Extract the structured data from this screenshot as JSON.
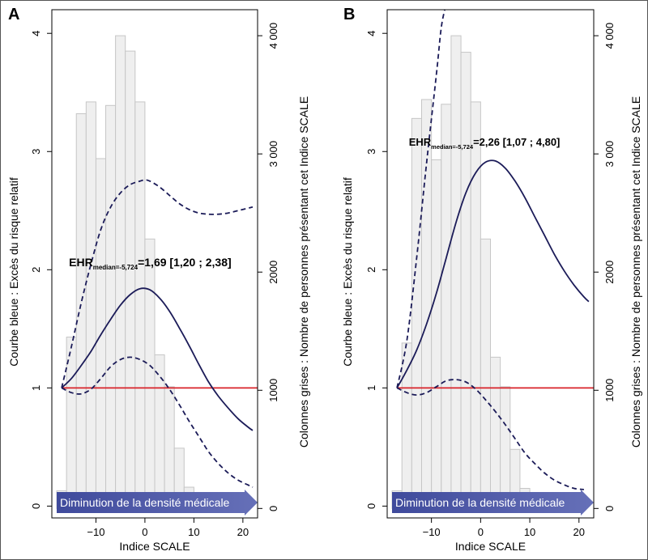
{
  "chart_data": [
    {
      "type": "bar+line",
      "panel_label": "A",
      "xlabel": "Indice SCALE",
      "ylabel_left": "Courbe bleue : Excès du risque relatif",
      "ylabel_right": "Colonnes grises : Nombre de personnes présentant cet Indice SCALE",
      "x_ticks": [
        "−10",
        "0",
        "10",
        "20"
      ],
      "x_tick_values": [
        -10,
        0,
        10,
        20
      ],
      "y_left_ticks": [
        "0",
        "1",
        "2",
        "3",
        "4"
      ],
      "y_left_tick_values": [
        0,
        1,
        2,
        3,
        4
      ],
      "y_right_ticks": [
        "0",
        "1000",
        "2000",
        "3 000",
        "4 000"
      ],
      "y_right_tick_values": [
        0,
        1000,
        2000,
        3000,
        4000
      ],
      "xlim": [
        -19,
        23
      ],
      "ylim_left": [
        -0.1,
        4.2
      ],
      "ylim_right": [
        -80,
        4220
      ],
      "histogram": {
        "bin_width": 2,
        "bin_starts": [
          -18,
          -16,
          -14,
          -12,
          -10,
          -8,
          -6,
          -4,
          -2,
          0,
          2,
          4,
          6,
          8,
          10,
          12,
          14,
          16,
          18,
          20
        ],
        "counts": [
          150,
          1450,
          3340,
          3440,
          2960,
          3410,
          4000,
          3870,
          3440,
          2280,
          1300,
          1030,
          510,
          180,
          70,
          70,
          40,
          50,
          20,
          0
        ]
      },
      "reference_line_y": 1,
      "ehr_curve": {
        "x": [
          -17,
          -15,
          -13,
          -11,
          -9,
          -7,
          -5,
          -3,
          -1,
          1,
          3,
          5,
          7,
          9,
          11,
          13,
          15,
          17,
          19,
          21,
          22
        ],
        "y": [
          1.0,
          1.08,
          1.19,
          1.31,
          1.45,
          1.58,
          1.7,
          1.79,
          1.84,
          1.83,
          1.76,
          1.65,
          1.51,
          1.36,
          1.2,
          1.05,
          0.93,
          0.83,
          0.74,
          0.67,
          0.64
        ]
      },
      "ci_upper": {
        "x": [
          -17,
          -15,
          -13,
          -11,
          -9,
          -7,
          -5,
          -3,
          -1,
          0,
          1,
          3,
          5,
          7,
          9,
          11,
          13,
          15,
          17,
          19,
          21,
          22
        ],
        "y": [
          1.0,
          1.35,
          1.72,
          2.05,
          2.34,
          2.53,
          2.65,
          2.72,
          2.75,
          2.76,
          2.75,
          2.7,
          2.63,
          2.56,
          2.51,
          2.48,
          2.47,
          2.47,
          2.48,
          2.5,
          2.52,
          2.53
        ]
      },
      "ci_lower": {
        "x": [
          -17,
          -15,
          -13,
          -11,
          -9,
          -7,
          -5,
          -3,
          -1,
          1,
          3,
          5,
          7,
          9,
          11,
          13,
          15,
          17,
          19,
          21,
          22
        ],
        "y": [
          1.0,
          0.96,
          0.95,
          0.99,
          1.08,
          1.18,
          1.24,
          1.26,
          1.24,
          1.19,
          1.1,
          0.99,
          0.86,
          0.72,
          0.59,
          0.46,
          0.36,
          0.28,
          0.22,
          0.18,
          0.16
        ]
      },
      "annotation": {
        "main": "EHR",
        "subscript": "median=-5,724",
        "value": "=1,69 [1,20 ; 2,38]",
        "x": -15.5,
        "y": 2.03
      },
      "banner": {
        "text": "Diminution de la densité médicale"
      }
    },
    {
      "type": "bar+line",
      "panel_label": "B",
      "xlabel": "Indice SCALE",
      "ylabel_left": "Courbe bleue : Excès du risque relatif",
      "ylabel_right": "Colonnes grises : Nombre de personnes présentant cet Indice SCALE",
      "x_ticks": [
        "−10",
        "0",
        "10",
        "20"
      ],
      "x_tick_values": [
        -10,
        0,
        10,
        20
      ],
      "y_left_ticks": [
        "0",
        "1",
        "2",
        "3",
        "4"
      ],
      "y_left_tick_values": [
        0,
        1,
        2,
        3,
        4
      ],
      "y_right_ticks": [
        "0",
        "1000",
        "2000",
        "3 000",
        "4 000"
      ],
      "y_right_tick_values": [
        0,
        1000,
        2000,
        3000,
        4000
      ],
      "xlim": [
        -19,
        23
      ],
      "ylim_left": [
        -0.1,
        4.2
      ],
      "ylim_right": [
        -80,
        4220
      ],
      "histogram": {
        "bin_width": 2,
        "bin_starts": [
          -18,
          -16,
          -14,
          -12,
          -10,
          -8,
          -6,
          -4,
          -2,
          0,
          2,
          4,
          6,
          8,
          10,
          12,
          14,
          16,
          18,
          20
        ],
        "counts": [
          150,
          1400,
          3300,
          3460,
          2950,
          3420,
          4000,
          3860,
          3440,
          2280,
          1280,
          1030,
          500,
          170,
          70,
          70,
          40,
          50,
          20,
          0
        ]
      },
      "reference_line_y": 1,
      "ehr_curve": {
        "x": [
          -17,
          -15,
          -13,
          -11,
          -9,
          -7,
          -5,
          -3,
          -1,
          1,
          3,
          5,
          7,
          9,
          11,
          13,
          15,
          17,
          19,
          21,
          22
        ],
        "y": [
          1.0,
          1.15,
          1.32,
          1.54,
          1.8,
          2.1,
          2.4,
          2.65,
          2.82,
          2.91,
          2.92,
          2.86,
          2.75,
          2.61,
          2.45,
          2.29,
          2.13,
          1.99,
          1.87,
          1.77,
          1.73
        ]
      },
      "ci_upper": {
        "x": [
          -17,
          -15,
          -13,
          -11,
          -9,
          -8,
          -7
        ],
        "y": [
          1.0,
          1.4,
          2.1,
          2.9,
          3.65,
          4.05,
          4.25
        ]
      },
      "ci_lower": {
        "x": [
          -17,
          -15,
          -13,
          -11,
          -9,
          -7,
          -5,
          -3,
          -1,
          1,
          3,
          5,
          7,
          9,
          11,
          13,
          15,
          17,
          19,
          21
        ],
        "y": [
          1.0,
          0.96,
          0.94,
          0.96,
          1.01,
          1.06,
          1.07,
          1.05,
          0.99,
          0.9,
          0.8,
          0.69,
          0.57,
          0.45,
          0.36,
          0.28,
          0.22,
          0.18,
          0.15,
          0.14
        ]
      },
      "annotation": {
        "main": "EHR",
        "subscript": "median=-5,724",
        "value": "=2,26 [1,07 ; 4,80]",
        "x": -14.6,
        "y": 3.05
      },
      "banner": {
        "text": "Diminution de la densité médicale"
      }
    }
  ],
  "colors": {
    "bars_fill": "#efefef",
    "bars_stroke": "#c6c6c6",
    "curve": "#1b1b58",
    "reference_line": "#d8232a",
    "banner": "#4e58a5",
    "frame": "#555555"
  }
}
